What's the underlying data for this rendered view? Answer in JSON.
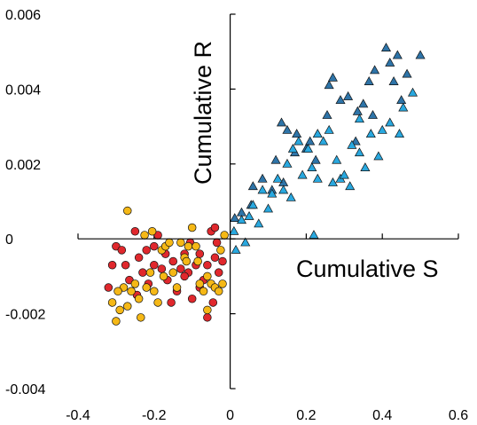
{
  "chart_data": {
    "type": "scatter",
    "title": "",
    "xlabel": "Cumulative S",
    "ylabel": "Cumulative R",
    "xlim": [
      -0.4,
      0.6
    ],
    "ylim": [
      -0.004,
      0.006
    ],
    "x_ticks": [
      -0.4,
      -0.2,
      0,
      0.2,
      0.4,
      0.6
    ],
    "x_tick_labels": [
      "-0.4",
      "-0.2",
      "0",
      "0.2",
      "0.4",
      "0.6"
    ],
    "y_ticks": [
      0.006,
      0.004,
      0.002,
      0,
      -0.002,
      -0.004
    ],
    "y_tick_labels": [
      "0.006",
      "0.004",
      "0.002",
      "0",
      "-0.002",
      "-0.004"
    ],
    "axes_cross_at_origin": true,
    "grid": false,
    "legend": "none",
    "series": [
      {
        "marker": "triangle",
        "color": "#2E74A8",
        "points": [
          [
            0.012,
            0.00055
          ],
          [
            0.03,
            0.0007
          ],
          [
            0.055,
            0.0009
          ],
          [
            0.06,
            0.0014
          ],
          [
            0.085,
            0.0016
          ],
          [
            0.11,
            0.0013
          ],
          [
            0.12,
            0.0021
          ],
          [
            0.135,
            0.0031
          ],
          [
            0.14,
            0.0015
          ],
          [
            0.15,
            0.0029
          ],
          [
            0.175,
            0.0028
          ],
          [
            0.2,
            0.0024
          ],
          [
            0.21,
            0.0026
          ],
          [
            0.225,
            0.0021
          ],
          [
            0.26,
            0.0041
          ],
          [
            0.255,
            0.0033
          ],
          [
            0.27,
            0.0043
          ],
          [
            0.29,
            0.0037
          ],
          [
            0.31,
            0.0038
          ],
          [
            0.335,
            0.0034
          ],
          [
            0.33,
            0.0026
          ],
          [
            0.35,
            0.0036
          ],
          [
            0.365,
            0.0042
          ],
          [
            0.38,
            0.0045
          ],
          [
            0.41,
            0.0051
          ],
          [
            0.42,
            0.0047
          ],
          [
            0.43,
            0.0042
          ],
          [
            0.44,
            0.0049
          ],
          [
            0.465,
            0.0044
          ],
          [
            0.45,
            0.0037
          ],
          [
            0.5,
            0.0049
          ],
          [
            0.375,
            0.0033
          ],
          [
            0.17,
            0.0023
          ]
        ]
      },
      {
        "marker": "triangle",
        "color": "#29A8DF",
        "points": [
          [
            0.01,
            0.0002
          ],
          [
            0.015,
            -0.0003
          ],
          [
            0.04,
            -0.0001
          ],
          [
            0.03,
            0.0005
          ],
          [
            0.05,
            0.0006
          ],
          [
            0.075,
            0.0004
          ],
          [
            0.1,
            0.0008
          ],
          [
            0.11,
            0.0012
          ],
          [
            0.125,
            0.0016
          ],
          [
            0.14,
            0.0013
          ],
          [
            0.15,
            0.002
          ],
          [
            0.165,
            0.0024
          ],
          [
            0.18,
            0.0026
          ],
          [
            0.19,
            0.0017
          ],
          [
            0.205,
            0.0024
          ],
          [
            0.215,
            0.0019
          ],
          [
            0.23,
            0.0016
          ],
          [
            0.245,
            0.0026
          ],
          [
            0.26,
            0.0029
          ],
          [
            0.27,
            0.0015
          ],
          [
            0.28,
            0.0021
          ],
          [
            0.29,
            0.0016
          ],
          [
            0.3,
            0.0017
          ],
          [
            0.315,
            0.0014
          ],
          [
            0.32,
            0.0025
          ],
          [
            0.34,
            0.0023
          ],
          [
            0.355,
            0.0019
          ],
          [
            0.37,
            0.0028
          ],
          [
            0.39,
            0.0022
          ],
          [
            0.4,
            0.0029
          ],
          [
            0.42,
            0.0031
          ],
          [
            0.445,
            0.0028
          ],
          [
            0.455,
            0.0035
          ],
          [
            0.48,
            0.0039
          ],
          [
            0.22,
            0.0001
          ],
          [
            0.085,
            0.0013
          ],
          [
            0.06,
            0.0009
          ],
          [
            0.16,
            0.0011
          ],
          [
            0.34,
            0.0032
          ],
          [
            0.23,
            0.0028
          ]
        ]
      },
      {
        "marker": "circle",
        "color": "#E0282D",
        "points": [
          [
            -0.3,
            -0.0002
          ],
          [
            -0.275,
            -0.0007
          ],
          [
            -0.265,
            -0.0011
          ],
          [
            -0.24,
            -0.0005
          ],
          [
            -0.25,
            0.0002
          ],
          [
            -0.23,
            -0.0009
          ],
          [
            -0.22,
            -0.0003
          ],
          [
            -0.2,
            -0.0002
          ],
          [
            -0.215,
            -0.0012
          ],
          [
            -0.18,
            -0.0008
          ],
          [
            -0.17,
            -0.0004
          ],
          [
            -0.165,
            -0.0011
          ],
          [
            -0.15,
            -0.0006
          ],
          [
            -0.14,
            -0.0014
          ],
          [
            -0.13,
            -0.0008
          ],
          [
            -0.12,
            -0.0004
          ],
          [
            -0.11,
            -0.0009
          ],
          [
            -0.1,
            -0.0016
          ],
          [
            -0.09,
            -0.0007
          ],
          [
            -0.08,
            -0.0004
          ],
          [
            -0.07,
            -0.0011
          ],
          [
            -0.06,
            -0.0007
          ],
          [
            -0.05,
            0.0002
          ],
          [
            -0.04,
            -0.0005
          ],
          [
            -0.03,
            -0.0009
          ],
          [
            -0.02,
            -0.0006
          ],
          [
            -0.045,
            -0.0017
          ],
          [
            -0.06,
            -0.0021
          ],
          [
            -0.08,
            -0.0013
          ],
          [
            -0.2,
            -0.0007
          ],
          [
            -0.19,
            0.0001
          ],
          [
            -0.32,
            -0.0013
          ],
          [
            -0.31,
            -0.0007
          ],
          [
            -0.285,
            -0.0003
          ],
          [
            -0.245,
            -0.0015
          ],
          [
            -0.155,
            -0.0017
          ],
          [
            -0.12,
            -0.001
          ],
          [
            -0.035,
            -0.0001
          ],
          [
            -0.04,
            0.0003
          ],
          [
            -0.105,
            -0.0001
          ]
        ]
      },
      {
        "marker": "circle",
        "color": "#F5B816",
        "points": [
          [
            -0.27,
            0.00075
          ],
          [
            -0.31,
            -0.0017
          ],
          [
            -0.3,
            -0.0022
          ],
          [
            -0.29,
            -0.0019
          ],
          [
            -0.28,
            -0.0013
          ],
          [
            -0.27,
            -0.0018
          ],
          [
            -0.26,
            -0.0014
          ],
          [
            -0.25,
            -0.0012
          ],
          [
            -0.24,
            -0.0016
          ],
          [
            -0.235,
            -0.0021
          ],
          [
            -0.22,
            -0.0013
          ],
          [
            -0.21,
            -0.0009
          ],
          [
            -0.2,
            -0.0014
          ],
          [
            -0.19,
            -0.0017
          ],
          [
            -0.18,
            -0.0003
          ],
          [
            -0.17,
            -0.0002
          ],
          [
            -0.16,
            -0.0001
          ],
          [
            -0.15,
            -0.0009
          ],
          [
            -0.14,
            -0.0013
          ],
          [
            -0.13,
            -0.0001
          ],
          [
            -0.12,
            -0.0005
          ],
          [
            -0.11,
            -0.0002
          ],
          [
            -0.1,
            0.0003
          ],
          [
            -0.09,
            -0.0002
          ],
          [
            -0.085,
            -0.0006
          ],
          [
            -0.08,
            -0.0012
          ],
          [
            -0.07,
            -0.0014
          ],
          [
            -0.06,
            -0.001
          ],
          [
            -0.05,
            -0.0012
          ],
          [
            -0.04,
            -0.0013
          ],
          [
            -0.03,
            -0.0014
          ],
          [
            -0.02,
            -0.0012
          ],
          [
            -0.025,
            -0.0003
          ],
          [
            -0.015,
            0.0001
          ],
          [
            -0.06,
            -0.0019
          ],
          [
            -0.205,
            0.0002
          ],
          [
            -0.225,
            0.0001
          ],
          [
            -0.295,
            -0.0014
          ],
          [
            -0.175,
            -0.001
          ],
          [
            -0.115,
            -0.0006
          ]
        ]
      }
    ]
  }
}
